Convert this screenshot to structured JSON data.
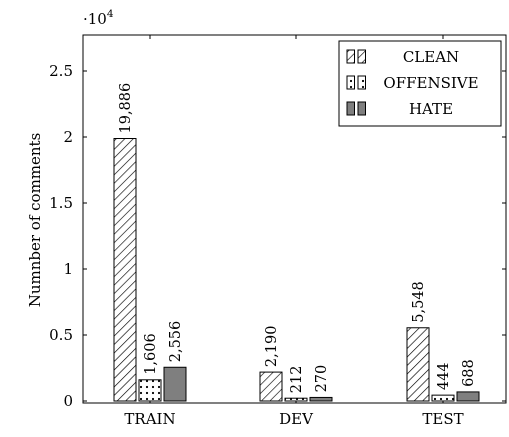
{
  "chart_data": {
    "type": "bar",
    "categories": [
      "TRAIN",
      "DEV",
      "TEST"
    ],
    "series": [
      {
        "name": "CLEAN",
        "values": [
          19886,
          2190,
          5548
        ],
        "labels": [
          "19,886",
          "2,190",
          "5,548"
        ],
        "pattern": "diagonal-hatch"
      },
      {
        "name": "OFFENSIVE",
        "values": [
          1606,
          212,
          444
        ],
        "labels": [
          "1,606",
          "212",
          "444"
        ],
        "pattern": "dots"
      },
      {
        "name": "HATE",
        "values": [
          2556,
          270,
          688
        ],
        "labels": [
          "2,556",
          "270",
          "688"
        ],
        "pattern": "solid-gray"
      }
    ],
    "ylabel": "Numnber of comments",
    "xlabel": "",
    "ylim": [
      0,
      27500
    ],
    "yticks": [
      0,
      5000,
      10000,
      15000,
      20000,
      25000
    ],
    "ytick_labels": [
      "0",
      "0.5",
      "1",
      "1.5",
      "2",
      "2.5"
    ],
    "y_multiplier": {
      "base": "·10",
      "exponent": "4"
    },
    "legend_position": "top-right",
    "grid": false,
    "colors": {
      "hate": "#7f7f7f",
      "axis": "#000000"
    }
  }
}
